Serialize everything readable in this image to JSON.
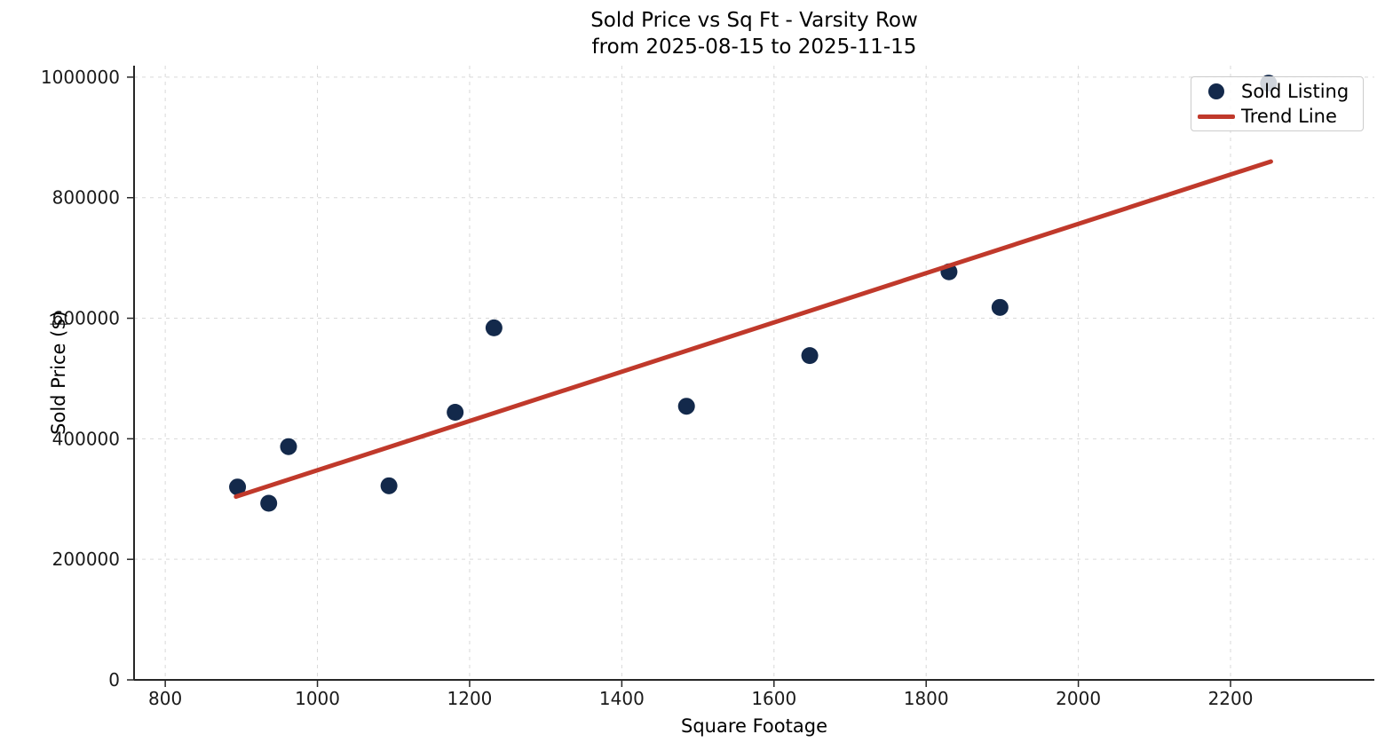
{
  "chart_data": {
    "type": "scatter",
    "title_line1": "Sold Price vs Sq Ft - Varsity Row",
    "title_line2": "from 2025-08-15 to 2025-11-15",
    "xlabel": "Square Footage",
    "ylabel": "Sold Price ($)",
    "xlim": [
      759,
      2389
    ],
    "ylim": [
      0,
      1019000
    ],
    "x_ticks": [
      800,
      1000,
      1200,
      1400,
      1600,
      1800,
      2000,
      2200
    ],
    "y_ticks": [
      0,
      200000,
      400000,
      600000,
      800000,
      1000000
    ],
    "grid": true,
    "grid_style": "dashed",
    "legend_position": "upper right",
    "series": [
      {
        "name": "Sold Listing",
        "type": "scatter",
        "color": "#13294b",
        "marker": "circle",
        "points": [
          [
            895,
            320000
          ],
          [
            936,
            293000
          ],
          [
            962,
            387000
          ],
          [
            1094,
            322000
          ],
          [
            1181,
            444000
          ],
          [
            1232,
            584000
          ],
          [
            1485,
            454000
          ],
          [
            1647,
            538000
          ],
          [
            1830,
            677000
          ],
          [
            1897,
            618000
          ],
          [
            2250,
            990000
          ]
        ]
      },
      {
        "name": "Trend Line",
        "type": "line",
        "color": "#c0392b",
        "points": [
          [
            893,
            304000
          ],
          [
            2253,
            860000
          ]
        ]
      }
    ]
  },
  "colors": {
    "background": "#ffffff",
    "point": "#13294b",
    "trend": "#c0392b",
    "gridline": "#d9d9d9",
    "spine": "#262626",
    "text": "#1a1a1a",
    "legend_border": "#cccccc"
  }
}
